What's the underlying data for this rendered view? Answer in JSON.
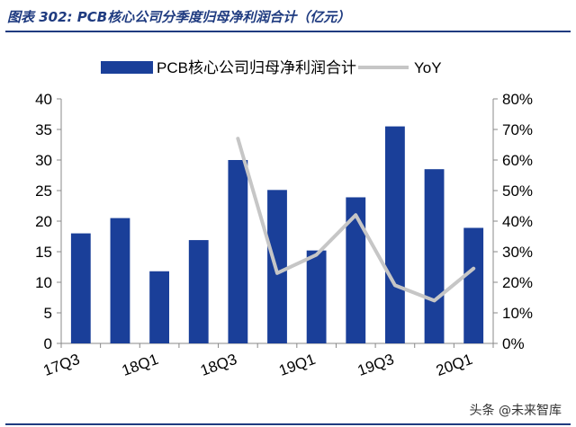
{
  "figure_title": "图表 302:  PCB核心公司分季度归母净利润合计（亿元）",
  "watermark": "头条 @未来智库",
  "colors": {
    "bar": "#1a3f99",
    "line": "#c6c6c6",
    "title": "#1f3b80",
    "axis": "#888888"
  },
  "chart_data": {
    "type": "bar",
    "title": "",
    "categories": [
      "17Q3",
      "17Q4",
      "18Q1",
      "18Q2",
      "18Q3",
      "18Q4",
      "19Q1",
      "19Q2",
      "19Q3",
      "19Q4",
      "20Q1"
    ],
    "x_tick_labels": [
      "17Q3",
      "",
      "18Q1",
      "",
      "18Q3",
      "",
      "19Q1",
      "",
      "19Q3",
      "",
      "20Q1"
    ],
    "series": [
      {
        "name": "PCB核心公司归母净利润合计",
        "type": "bar",
        "axis": "left",
        "values": [
          18.0,
          20.5,
          11.8,
          16.9,
          30.0,
          25.1,
          15.2,
          23.9,
          35.5,
          28.5,
          18.9
        ]
      },
      {
        "name": "YoY",
        "type": "line",
        "axis": "right",
        "values": [
          null,
          null,
          null,
          null,
          0.67,
          0.23,
          0.29,
          0.42,
          0.19,
          0.14,
          0.245
        ]
      }
    ],
    "y_left": {
      "min": 0,
      "max": 40,
      "ticks": [
        0,
        5,
        10,
        15,
        20,
        25,
        30,
        35,
        40
      ]
    },
    "y_right": {
      "min": 0,
      "max": 0.8,
      "ticks": [
        0,
        0.1,
        0.2,
        0.3,
        0.4,
        0.5,
        0.6,
        0.7,
        0.8
      ],
      "tick_labels": [
        "0%",
        "10%",
        "20%",
        "30%",
        "40%",
        "50%",
        "60%",
        "70%",
        "80%"
      ]
    },
    "grid": false,
    "legend": "top"
  }
}
